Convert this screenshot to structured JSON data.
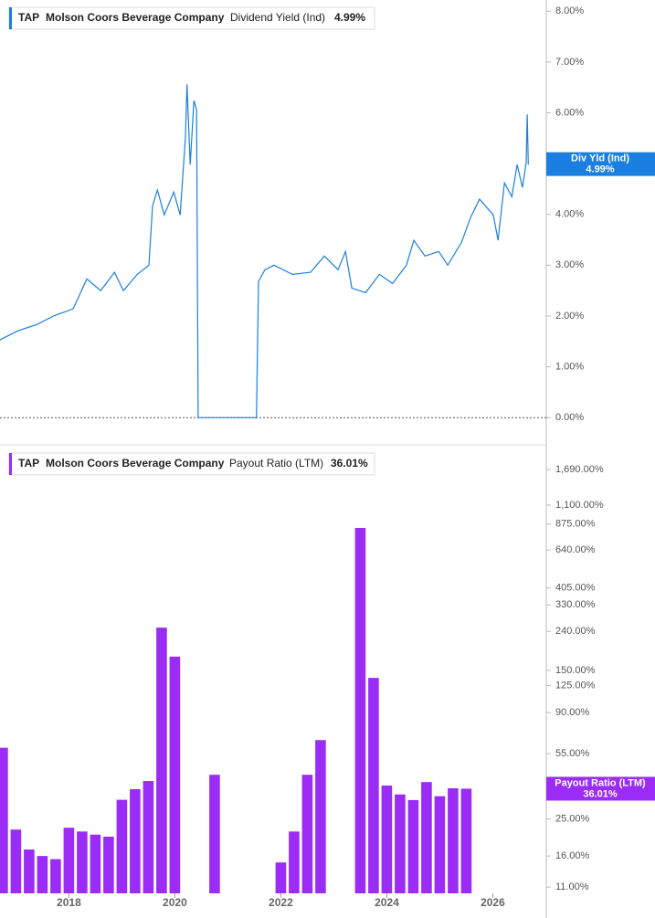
{
  "chart_data": [
    {
      "type": "line",
      "ticker": "TAP",
      "company": "Molson Coors Beverage Company",
      "badge_name": "Div Yld (Ind)",
      "current_value": 4.99,
      "current_label": "4.99%",
      "x": [
        2016.7,
        2017.04,
        2017.39,
        2017.73,
        2018.08,
        2018.34,
        2018.6,
        2018.86,
        2019.03,
        2019.29,
        2019.51,
        2019.58,
        2019.67,
        2019.8,
        2019.98,
        2020.1,
        2020.2,
        2020.23,
        2020.29,
        2020.36,
        2020.41,
        2020.44,
        2021.54,
        2021.58,
        2021.7,
        2021.87,
        2022.22,
        2022.56,
        2022.82,
        2023.08,
        2023.22,
        2023.34,
        2023.6,
        2023.86,
        2024.11,
        2024.37,
        2024.51,
        2024.72,
        2024.98,
        2025.15,
        2025.41,
        2025.58,
        2025.75,
        2026.01,
        2026.1,
        2026.22,
        2026.36,
        2026.46,
        2026.56,
        2026.63,
        2026.65,
        2026.67
      ],
      "series": [
        {
          "name": "Dividend Yield (Ind)",
          "color": "#1a7fe0",
          "values": [
            1.53,
            1.71,
            1.83,
            2.01,
            2.14,
            2.73,
            2.5,
            2.86,
            2.5,
            2.82,
            3.0,
            4.17,
            4.48,
            3.99,
            4.44,
            3.99,
            5.52,
            6.56,
            4.98,
            6.24,
            6.06,
            0,
            0,
            2.68,
            2.91,
            3.0,
            2.82,
            2.86,
            3.18,
            2.91,
            3.27,
            2.55,
            2.46,
            2.82,
            2.64,
            3.0,
            3.49,
            3.18,
            3.27,
            3.0,
            3.45,
            3.94,
            4.3,
            3.99,
            3.49,
            4.62,
            4.35,
            4.98,
            4.53,
            5.02,
            5.97,
            4.98
          ]
        }
      ],
      "xlim": [
        2016.7,
        2027.01
      ],
      "ylim": [
        -0.23,
        8.22
      ],
      "yticks": [
        {
          "value": 0,
          "label": "0.00%"
        },
        {
          "value": 1,
          "label": "1.00%"
        },
        {
          "value": 2,
          "label": "2.00%"
        },
        {
          "value": 3,
          "label": "3.00%"
        },
        {
          "value": 4,
          "label": "4.00%"
        },
        {
          "value": 5,
          "label": "5.00%"
        },
        {
          "value": 6,
          "label": "6.00%"
        },
        {
          "value": 7,
          "label": "7.00%"
        },
        {
          "value": 8,
          "label": "8.00%"
        }
      ]
    },
    {
      "type": "bar",
      "ticker": "TAP",
      "company": "Molson Coors Beverage Company",
      "current_value": 36.01,
      "current_label": "36.01%",
      "log_scale": true,
      "x": [
        2016.75,
        2017.0,
        2017.25,
        2017.5,
        2017.75,
        2018.0,
        2018.25,
        2018.5,
        2018.75,
        2019.0,
        2019.25,
        2019.5,
        2019.75,
        2020.0,
        2020.25,
        2020.5,
        2020.75,
        2021.0,
        2021.25,
        2021.5,
        2021.75,
        2022.0,
        2022.25,
        2022.5,
        2022.75,
        2023.0,
        2023.25,
        2023.5,
        2023.75,
        2024.0,
        2024.25,
        2024.5,
        2024.75,
        2025.0,
        2025.25,
        2025.5
      ],
      "series": [
        {
          "name": "Payout Ratio (LTM)",
          "color": "#9a2cf5",
          "values": [
            59,
            22,
            17.3,
            16,
            15.4,
            22.5,
            21.5,
            20.7,
            20.2,
            31.5,
            35.8,
            39.5,
            251,
            177,
            null,
            null,
            42.6,
            null,
            null,
            null,
            null,
            14.8,
            21.5,
            42.6,
            64.7,
            null,
            null,
            835,
            137,
            37.4,
            33.6,
            31.4,
            39,
            32.9,
            36.2,
            36.01
          ]
        }
      ],
      "xlim": [
        2016.7,
        2027.01
      ],
      "xticks": [
        2018,
        2020,
        2022,
        2024,
        2026
      ],
      "ylim": [
        10.2,
        2200
      ],
      "yticks": [
        {
          "value": 11,
          "label": "11.00%"
        },
        {
          "value": 16,
          "label": "16.00%"
        },
        {
          "value": 25,
          "label": "25.00%"
        },
        {
          "value": 55,
          "label": "55.00%"
        },
        {
          "value": 90,
          "label": "90.00%"
        },
        {
          "value": 125,
          "label": "125.00%"
        },
        {
          "value": 150,
          "label": "150.00%"
        },
        {
          "value": 240,
          "label": "240.00%"
        },
        {
          "value": 330,
          "label": "330.00%"
        },
        {
          "value": 405,
          "label": "405.00%"
        },
        {
          "value": 640,
          "label": "640.00%"
        },
        {
          "value": 875,
          "label": "875.00%"
        },
        {
          "value": 1100,
          "label": "1,100.00%"
        },
        {
          "value": 1690,
          "label": "1,690.00%"
        }
      ]
    }
  ]
}
